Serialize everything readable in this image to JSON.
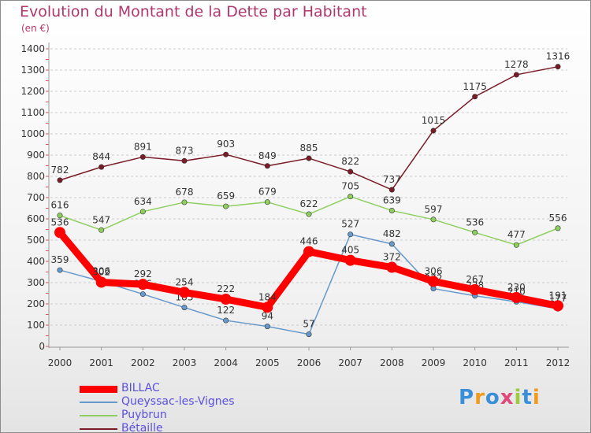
{
  "title": "Evolution du Montant de la Dette par Habitant",
  "subtitle": "(en €)",
  "logo": "Proxiti",
  "colors": {
    "title": "#b0376e",
    "legend_text": "#5a50e0",
    "axis": "#999999",
    "grid": "#cccccc"
  },
  "chart_data": {
    "type": "line",
    "title": "Evolution du Montant de la Dette par Habitant",
    "subtitle": "(en €)",
    "x": [
      "2000",
      "2001",
      "2002",
      "2003",
      "2004",
      "2005",
      "2006",
      "2007",
      "2008",
      "2009",
      "2010",
      "2011",
      "2012"
    ],
    "ylim": [
      0,
      1400
    ],
    "yticks": [
      "0",
      "100",
      "200",
      "300",
      "400",
      "500",
      "600",
      "700",
      "800",
      "900",
      "1000",
      "1100",
      "1200",
      "1300",
      "1400"
    ],
    "grid": "horizontal dashed",
    "legend_position": "bottom-left",
    "series": [
      {
        "name": "Bétaille",
        "color": "#7a1c28",
        "values": [
          782,
          844,
          891,
          873,
          903,
          849,
          885,
          822,
          737,
          1015,
          1175,
          1278,
          1316
        ]
      },
      {
        "name": "Puybrun",
        "color": "#8ecf5f",
        "values": [
          616,
          547,
          634,
          678,
          659,
          679,
          622,
          705,
          639,
          597,
          536,
          477,
          556
        ]
      },
      {
        "name": "Queyssac-les-Vignes",
        "color": "#6699cc",
        "values": [
          359,
          306,
          246,
          183,
          122,
          94,
          57,
          527,
          482,
          272,
          238,
          210,
          177
        ]
      },
      {
        "name": "BILLAC",
        "color": "#ff0000",
        "values": [
          536,
          302,
          292,
          254,
          222,
          184,
          446,
          405,
          372,
          306,
          267,
          230,
          191
        ]
      }
    ]
  }
}
